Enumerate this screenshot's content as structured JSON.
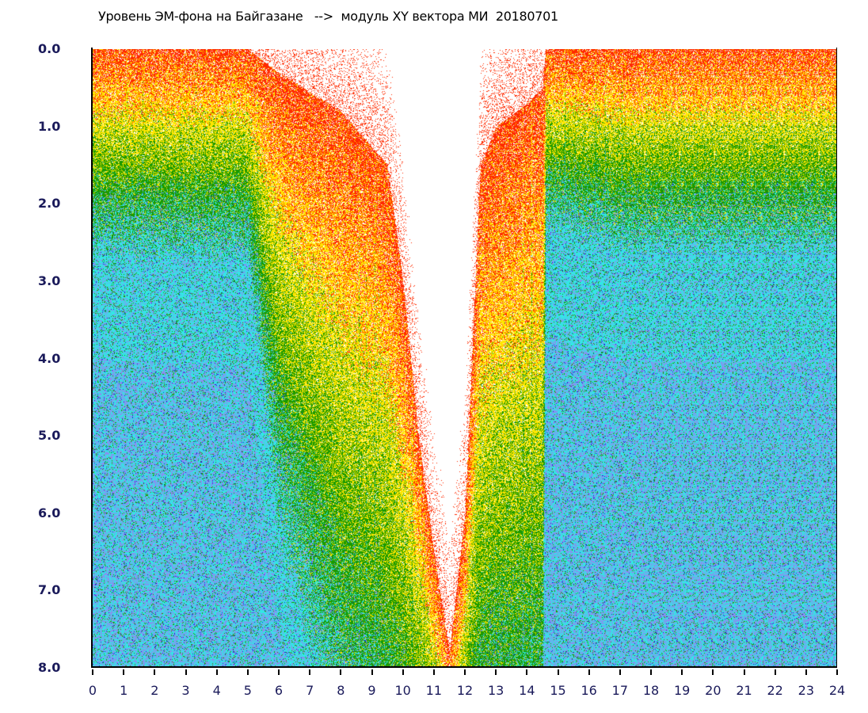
{
  "chart_data": {
    "type": "heatmap",
    "title": "Уровень ЭМ-фона на Байгазане   -->  модуль XY вектора МИ  20180701",
    "xlabel": "",
    "ylabel": "",
    "xlim": [
      0,
      24
    ],
    "ylim": [
      0,
      8
    ],
    "y_inverted": true,
    "x_ticks": [
      "0",
      "1",
      "2",
      "3",
      "4",
      "5",
      "6",
      "7",
      "8",
      "9",
      "10",
      "11",
      "12",
      "13",
      "14",
      "15",
      "16",
      "17",
      "18",
      "19",
      "20",
      "21",
      "22",
      "23",
      "24"
    ],
    "y_ticks": [
      "0.0",
      "1.0",
      "2.0",
      "3.0",
      "4.0",
      "5.0",
      "6.0",
      "7.0",
      "8.0"
    ],
    "profile": {
      "hours": [
        0,
        5,
        6,
        8,
        9.5,
        10,
        10.5,
        11,
        11.5,
        12,
        12.5,
        13,
        14,
        14.5,
        14.6,
        17,
        20,
        24
      ],
      "data_top": [
        0,
        0,
        0.3,
        0.8,
        1.5,
        3,
        5,
        6.5,
        7.8,
        6,
        1.5,
        1,
        0.7,
        0.5,
        0,
        0,
        0,
        0
      ],
      "cyan_level": [
        2.5,
        2.6,
        6,
        9,
        10,
        10,
        10,
        10,
        10,
        10,
        10,
        10,
        10,
        10,
        2.2,
        2.5,
        2.5,
        2.5
      ]
    },
    "color_scale": [
      "#ff2a00",
      "#ffe600",
      "#1a9a00",
      "#33e6e6",
      "#8c8cf0",
      "#2020d0"
    ]
  }
}
